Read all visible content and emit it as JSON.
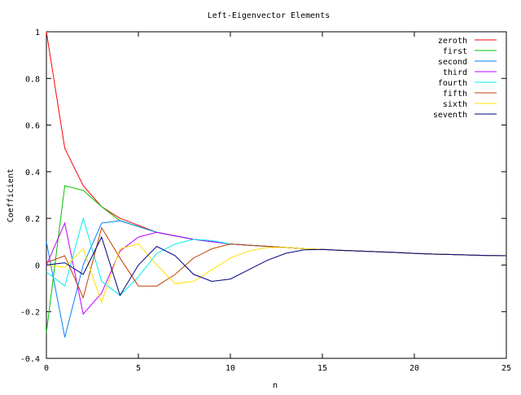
{
  "chart_data": {
    "type": "line",
    "title": "Left-Eigenvector Elements",
    "xlabel": "n",
    "ylabel": "Coefficient",
    "xlim": [
      0,
      25
    ],
    "ylim": [
      -0.4,
      1
    ],
    "xticks": [
      0,
      5,
      10,
      15,
      20,
      25
    ],
    "yticks": [
      -0.4,
      -0.2,
      0,
      0.2,
      0.4,
      0.6,
      0.8,
      1
    ],
    "xtick_labels": [
      "0",
      "5",
      "10",
      "15",
      "20",
      "25"
    ],
    "ytick_labels": [
      "-0.4",
      "-0.2",
      "0",
      "0.2",
      "0.4",
      "0.6",
      "0.8",
      "1"
    ],
    "grid": false,
    "legend_position": "top-right",
    "x": [
      0,
      1,
      2,
      3,
      4,
      5,
      6,
      7,
      8,
      9,
      10,
      11,
      12,
      13,
      14,
      15,
      16,
      17,
      18,
      19,
      20,
      21,
      22,
      23,
      24,
      25
    ],
    "series": [
      {
        "name": "zeroth",
        "color": "#ff0000",
        "values": [
          1.0,
          0.5,
          0.34,
          0.25,
          0.2,
          0.17,
          0.14,
          0.125,
          0.11,
          0.1,
          0.09,
          0.085,
          0.08,
          0.075,
          0.07,
          0.067,
          0.063,
          0.06,
          0.057,
          0.054,
          0.05,
          0.047,
          0.045,
          0.043,
          0.041,
          0.04
        ]
      },
      {
        "name": "first",
        "color": "#00c000",
        "values": [
          -0.29,
          0.34,
          0.32,
          0.25,
          0.19,
          0.165,
          0.14,
          0.125,
          0.11,
          0.1,
          0.09,
          0.085,
          0.08,
          0.075,
          0.07,
          0.067,
          0.063,
          0.06,
          0.057,
          0.054,
          0.05,
          0.047,
          0.045,
          0.043,
          0.041,
          0.04
        ]
      },
      {
        "name": "second",
        "color": "#0080ff",
        "values": [
          0.1,
          -0.31,
          0.0,
          0.18,
          0.19,
          0.165,
          0.14,
          0.125,
          0.11,
          0.1,
          0.09,
          0.085,
          0.08,
          0.075,
          0.07,
          0.067,
          0.063,
          0.06,
          0.057,
          0.054,
          0.05,
          0.047,
          0.045,
          0.043,
          0.041,
          0.04
        ]
      },
      {
        "name": "third",
        "color": "#c000ff",
        "values": [
          0.0,
          0.18,
          -0.21,
          -0.12,
          0.06,
          0.12,
          0.14,
          0.125,
          0.11,
          0.1,
          0.09,
          0.085,
          0.08,
          0.075,
          0.07,
          0.067,
          0.063,
          0.06,
          0.057,
          0.054,
          0.05,
          0.047,
          0.045,
          0.043,
          0.041,
          0.04
        ]
      },
      {
        "name": "fourth",
        "color": "#00eeee",
        "values": [
          -0.03,
          -0.09,
          0.2,
          -0.07,
          -0.13,
          -0.05,
          0.05,
          0.09,
          0.11,
          0.105,
          0.09,
          0.085,
          0.08,
          0.075,
          0.07,
          0.067,
          0.063,
          0.06,
          0.057,
          0.054,
          0.05,
          0.047,
          0.045,
          0.043,
          0.041,
          0.04
        ]
      },
      {
        "name": "fifth",
        "color": "#c04000",
        "values": [
          0.01,
          0.04,
          -0.14,
          0.16,
          0.03,
          -0.09,
          -0.09,
          -0.04,
          0.03,
          0.07,
          0.09,
          0.085,
          0.08,
          0.075,
          0.07,
          0.067,
          0.063,
          0.06,
          0.057,
          0.054,
          0.05,
          0.047,
          0.045,
          0.043,
          0.041,
          0.04
        ]
      },
      {
        "name": "sixth",
        "color": "#ffe000",
        "values": [
          0.0,
          -0.01,
          0.07,
          -0.16,
          0.07,
          0.09,
          0.0,
          -0.08,
          -0.07,
          -0.02,
          0.03,
          0.06,
          0.075,
          0.075,
          0.07,
          0.067,
          0.063,
          0.06,
          0.057,
          0.054,
          0.05,
          0.047,
          0.045,
          0.043,
          0.041,
          0.04
        ]
      },
      {
        "name": "seventh",
        "color": "#000080",
        "values": [
          0.0,
          0.01,
          -0.04,
          0.12,
          -0.13,
          0.0,
          0.08,
          0.04,
          -0.04,
          -0.07,
          -0.06,
          -0.02,
          0.02,
          0.05,
          0.065,
          0.067,
          0.063,
          0.06,
          0.057,
          0.054,
          0.05,
          0.047,
          0.045,
          0.043,
          0.041,
          0.04
        ]
      }
    ]
  }
}
